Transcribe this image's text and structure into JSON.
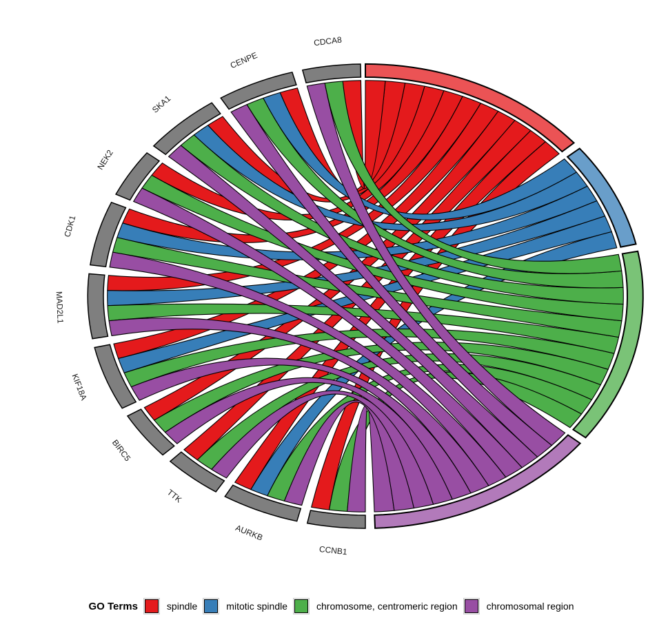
{
  "chart_data": {
    "type": "chord",
    "title": "",
    "genes": [
      "CCNB1",
      "AURKB",
      "TTK",
      "BIRC5",
      "KIF18A",
      "MAD2L1",
      "CDK1",
      "NEK2",
      "SKA1",
      "CENPE",
      "CDCA8"
    ],
    "terms": [
      "spindle",
      "mitotic spindle",
      "chromosome, centromeric region",
      "chromosomal region"
    ],
    "term_colors": [
      "#E41A1C",
      "#377EB8",
      "#4DAF4A",
      "#984EA3"
    ],
    "gene_segment_color": "#7F7F7F",
    "membership": [
      [
        1,
        0,
        1,
        1
      ],
      [
        1,
        1,
        1,
        1
      ],
      [
        1,
        0,
        1,
        1
      ],
      [
        1,
        0,
        1,
        1
      ],
      [
        1,
        1,
        1,
        1
      ],
      [
        1,
        1,
        1,
        1
      ],
      [
        1,
        1,
        1,
        1
      ],
      [
        1,
        0,
        1,
        1
      ],
      [
        1,
        1,
        1,
        1
      ],
      [
        1,
        1,
        1,
        1
      ],
      [
        1,
        0,
        1,
        1
      ]
    ],
    "legend": {
      "title": "GO Terms",
      "labels": [
        "spindle",
        "mitotic spindle",
        "chromosome, centromeric region",
        "chromosomal region"
      ]
    }
  }
}
